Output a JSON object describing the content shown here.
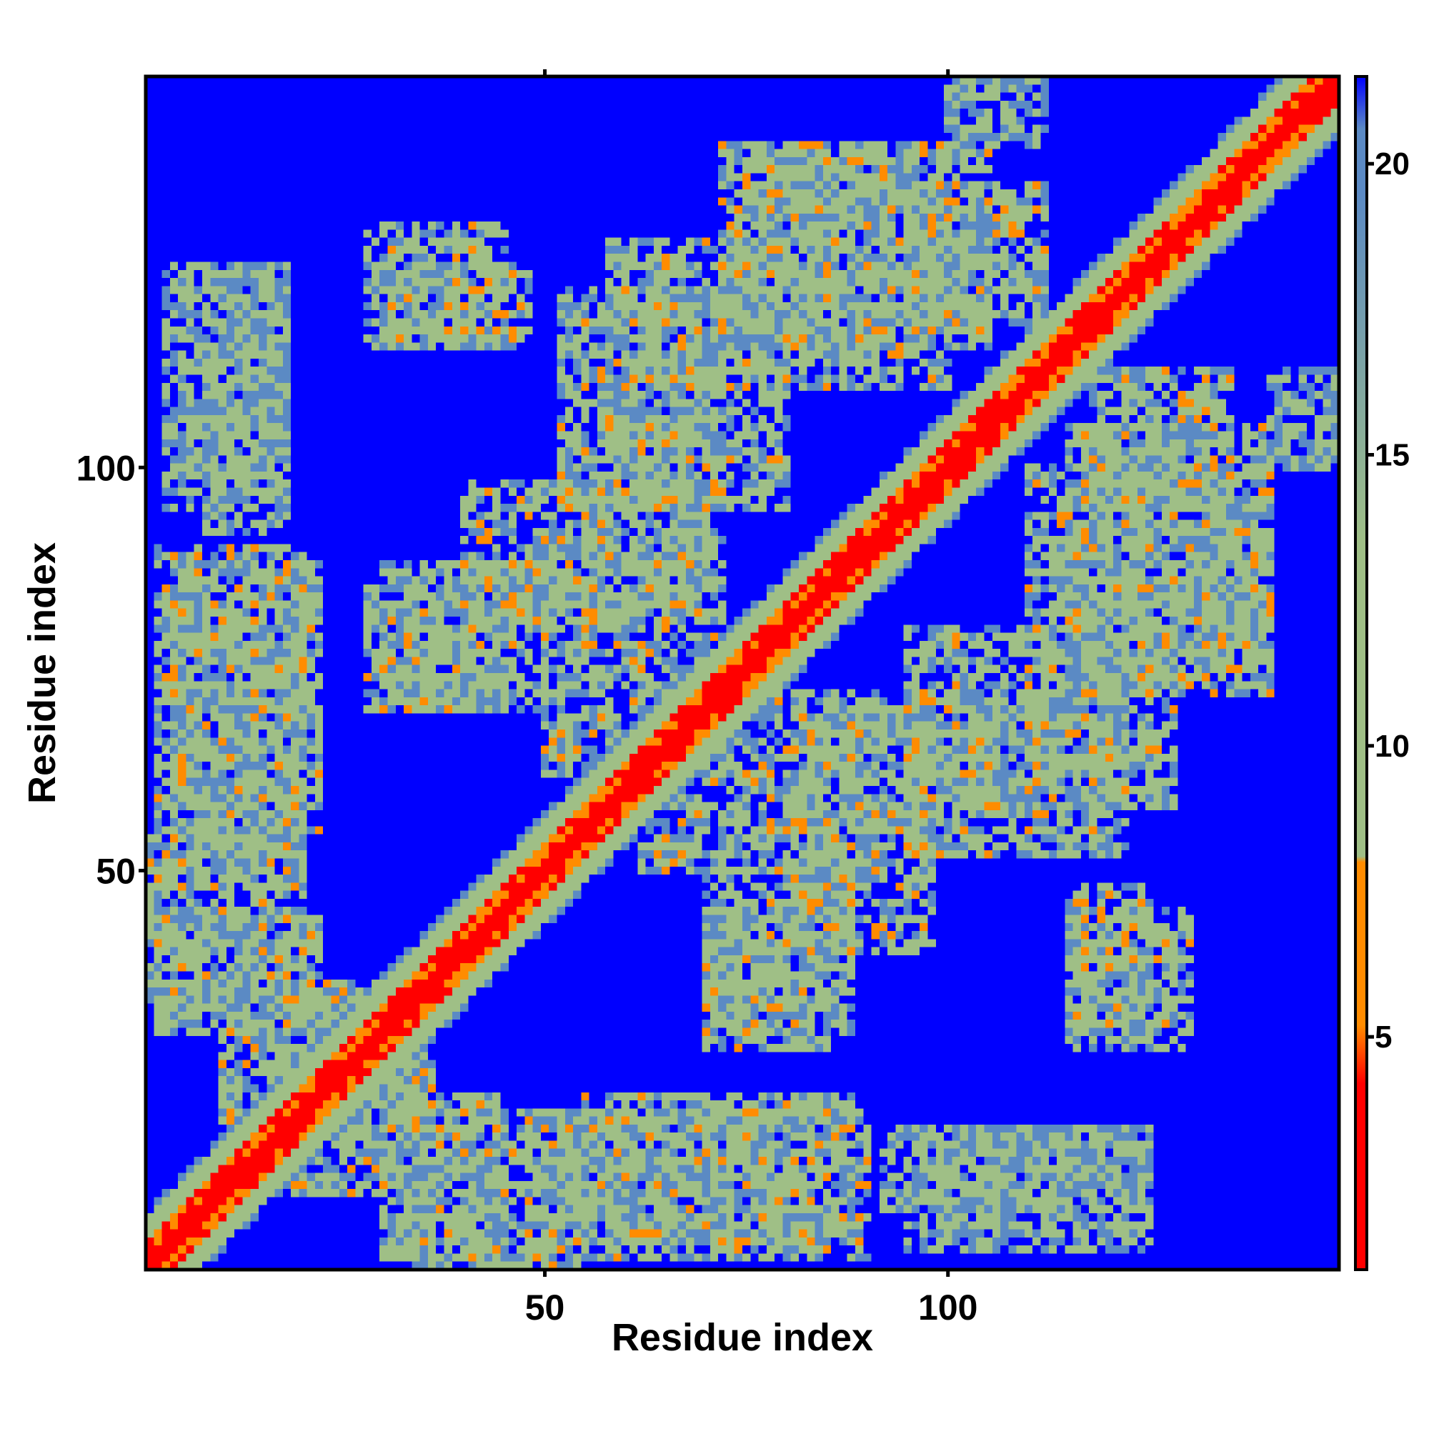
{
  "chart_data": {
    "type": "heatmap",
    "description_kind": "residue contact/distance map",
    "xlabel": "Residue index",
    "ylabel": "Residue index",
    "n_residues": 148,
    "xlim": [
      1,
      148
    ],
    "ylim": [
      1,
      148
    ],
    "x_ticks": [
      {
        "value": 50,
        "label": "50"
      },
      {
        "value": 100,
        "label": "100"
      }
    ],
    "y_ticks": [
      {
        "value": 50,
        "label": "50"
      },
      {
        "value": 100,
        "label": "100"
      }
    ],
    "colorbar": {
      "range": [
        1,
        21.5
      ],
      "ticks": [
        {
          "value": 5,
          "label": "5"
        },
        {
          "value": 10,
          "label": "10"
        },
        {
          "value": 15,
          "label": "15"
        },
        {
          "value": 20,
          "label": "20"
        }
      ],
      "colors": {
        "close": "#ff0000",
        "near": "#ff8c00",
        "mid": "#9fbf86",
        "far": "#5b8ac4",
        "none": "#0000ff"
      }
    },
    "diagonal_band": "red core with orange edges, surrounded by sage-green halo",
    "contact_regions": [
      {
        "x": [
          4,
          22
        ],
        "y": [
          55,
          88
        ],
        "level": "mid"
      },
      {
        "x": [
          1,
          20
        ],
        "y": [
          32,
          55
        ],
        "level": "mid"
      },
      {
        "x": [
          10,
          35
        ],
        "y": [
          18,
          36
        ],
        "level": "mid"
      },
      {
        "x": [
          30,
          45
        ],
        "y": [
          2,
          22
        ],
        "level": "mid"
      },
      {
        "x": [
          48,
          90
        ],
        "y": [
          2,
          20
        ],
        "level": "mid"
      },
      {
        "x": [
          28,
          45
        ],
        "y": [
          70,
          85
        ],
        "level": "mid"
      },
      {
        "x": [
          40,
          70
        ],
        "y": [
          82,
          98
        ],
        "level": "mid"
      },
      {
        "x": [
          52,
          72
        ],
        "y": [
          95,
          122
        ],
        "level": "mid"
      },
      {
        "x": [
          30,
          48
        ],
        "y": [
          115,
          125
        ],
        "level": "mid"
      },
      {
        "x": [
          72,
          105
        ],
        "y": [
          115,
          140
        ],
        "level": "mid"
      },
      {
        "x": [
          62,
          92
        ],
        "y": [
          50,
          72
        ],
        "level": "mid"
      },
      {
        "x": [
          70,
          88
        ],
        "y": [
          30,
          50
        ],
        "level": "mid"
      },
      {
        "x": [
          95,
          128
        ],
        "y": [
          58,
          80
        ],
        "level": "mid"
      },
      {
        "x": [
          110,
          140
        ],
        "y": [
          75,
          100
        ],
        "level": "mid"
      },
      {
        "x": [
          118,
          135
        ],
        "y": [
          95,
          112
        ],
        "level": "mid"
      },
      {
        "x": [
          115,
          130
        ],
        "y": [
          28,
          45
        ],
        "level": "mid"
      },
      {
        "x": [
          92,
          125
        ],
        "y": [
          8,
          18
        ],
        "level": "far"
      },
      {
        "x": [
          3,
          18
        ],
        "y": [
          95,
          125
        ],
        "level": "far"
      },
      {
        "x": [
          140,
          148
        ],
        "y": [
          100,
          112
        ],
        "level": "far"
      }
    ]
  }
}
